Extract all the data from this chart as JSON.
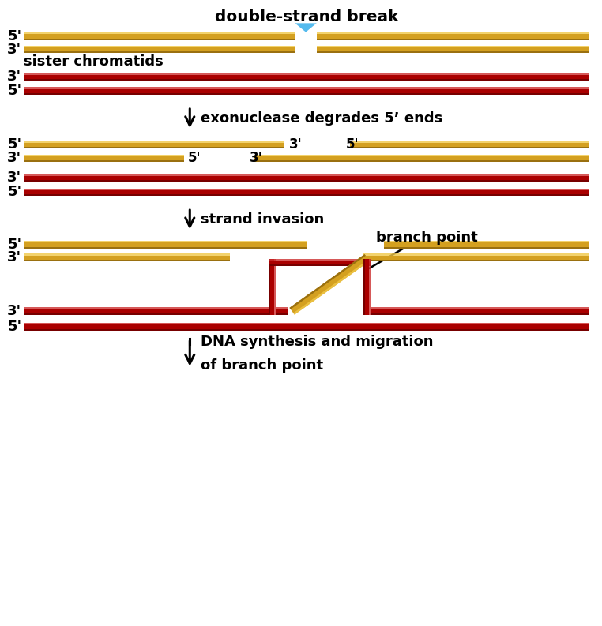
{
  "gold": "#D4A020",
  "gold_hi": "#F0C848",
  "gold_sh": "#9A7010",
  "red": "#AA0000",
  "red_hi": "#CC3030",
  "red_sh": "#770000",
  "blue": "#55BBEE",
  "bg": "#FFFFFF",
  "figsize": [
    7.62,
    7.93
  ],
  "dpi": 100,
  "xlim": [
    0,
    10
  ],
  "ylim": [
    0,
    10.5
  ]
}
